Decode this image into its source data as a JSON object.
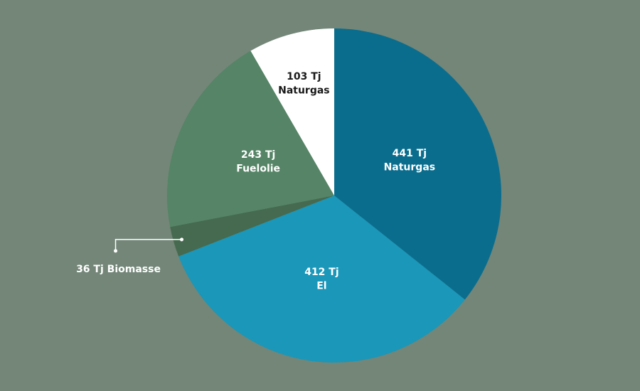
{
  "chart_data": {
    "type": "pie",
    "categories": [
      "Naturgas",
      "El",
      "Biomasse",
      "Fuelolie",
      "Naturgas"
    ],
    "values": [
      441,
      412,
      36,
      243,
      103
    ],
    "value_labels": [
      "441 Tj",
      "412 Tj",
      "36 Tj",
      "243 Tj",
      "103 Tj"
    ],
    "colors": [
      "#0b6d8d",
      "#1a97b9",
      "#466a4f",
      "#558466",
      "#ffffff"
    ]
  }
}
